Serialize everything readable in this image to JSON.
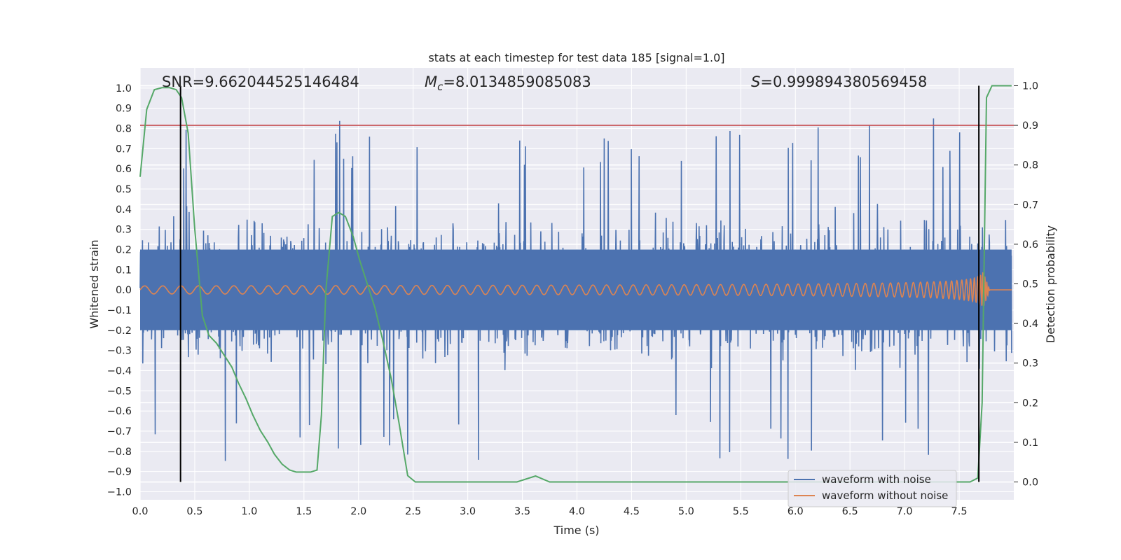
{
  "chart_data": {
    "type": "line",
    "title": "stats at each timestep for test data 185 [signal=1.0]",
    "xlabel": "Time (s)",
    "ylabel": "Whitened strain",
    "y2label": "Detection probability",
    "xlim": [
      0.0,
      8.0
    ],
    "ylim": [
      -1.04,
      1.1
    ],
    "y2lim": [
      -0.045,
      1.045
    ],
    "grid": true,
    "legend_position": "lower-right",
    "x_ticks": [
      "0.0",
      "0.5",
      "1.0",
      "1.5",
      "2.0",
      "2.5",
      "3.0",
      "3.5",
      "4.0",
      "4.5",
      "5.0",
      "5.5",
      "6.0",
      "6.5",
      "7.0",
      "7.5"
    ],
    "x_tick_values": [
      0.0,
      0.5,
      1.0,
      1.5,
      2.0,
      2.5,
      3.0,
      3.5,
      4.0,
      4.5,
      5.0,
      5.5,
      6.0,
      6.5,
      7.0,
      7.5
    ],
    "y_ticks": [
      "1.0",
      "0.9",
      "0.8",
      "0.7",
      "0.6",
      "0.5",
      "0.4",
      "0.3",
      "0.2",
      "0.1",
      "0.0",
      "−0.1",
      "−0.2",
      "−0.3",
      "−0.4",
      "−0.5",
      "−0.6",
      "−0.7",
      "−0.8",
      "−0.9",
      "−1.0"
    ],
    "y_tick_values": [
      1.0,
      0.9,
      0.8,
      0.7,
      0.6,
      0.5,
      0.4,
      0.3,
      0.2,
      0.1,
      0.0,
      -0.1,
      -0.2,
      -0.3,
      -0.4,
      -0.5,
      -0.6,
      -0.7,
      -0.8,
      -0.9,
      -1.0
    ],
    "y2_ticks": [
      "1.0",
      "0.9",
      "0.8",
      "0.7",
      "0.6",
      "0.5",
      "0.4",
      "0.3",
      "0.2",
      "0.1",
      "0.0"
    ],
    "y2_tick_values": [
      1.0,
      0.9,
      0.8,
      0.7,
      0.6,
      0.5,
      0.4,
      0.3,
      0.2,
      0.1,
      0.0
    ],
    "annotations": {
      "snr": "SNR=9.662044525146484",
      "mc_symbol": "M",
      "mc_sub": "c",
      "mc_value": "=8.0134859085083",
      "s_symbol": "S",
      "s_value": "=0.999894380569458"
    },
    "series": [
      {
        "name": "waveform with noise",
        "color": "#4c72b0",
        "description_values": {
          "typical_range": [
            -0.5,
            0.5
          ],
          "max": 1.0,
          "min": -0.9
        }
      },
      {
        "name": "waveform without noise",
        "color": "#dd8452",
        "chirp": {
          "start_amplitude": 0.02,
          "peak_time": 7.72,
          "peak_max": 0.25,
          "peak_min": -0.33,
          "end_time": 7.78
        }
      },
      {
        "name": "detection probability",
        "color": "#55a868",
        "axis": "right",
        "x": [
          0.0,
          0.06,
          0.13,
          0.2,
          0.27,
          0.33,
          0.38,
          0.44,
          0.5,
          0.57,
          0.63,
          0.7,
          0.77,
          0.84,
          0.9,
          0.97,
          1.03,
          1.1,
          1.17,
          1.23,
          1.3,
          1.37,
          1.43,
          1.5,
          1.56,
          1.62,
          1.66,
          1.7,
          1.76,
          1.82,
          1.88,
          1.95,
          2.01,
          2.08,
          2.15,
          2.22,
          2.3,
          2.37,
          2.45,
          2.52,
          3.0,
          3.45,
          3.62,
          3.75,
          3.85,
          4.5,
          5.5,
          6.5,
          7.6,
          7.67,
          7.71,
          7.75,
          7.8,
          7.85,
          7.98
        ],
        "y": [
          0.77,
          0.94,
          0.99,
          0.995,
          0.995,
          0.99,
          0.97,
          0.88,
          0.64,
          0.42,
          0.37,
          0.35,
          0.32,
          0.29,
          0.25,
          0.21,
          0.17,
          0.13,
          0.1,
          0.07,
          0.045,
          0.03,
          0.025,
          0.025,
          0.025,
          0.03,
          0.17,
          0.48,
          0.67,
          0.68,
          0.67,
          0.62,
          0.56,
          0.5,
          0.44,
          0.36,
          0.26,
          0.15,
          0.016,
          0.0,
          0.0,
          0.0,
          0.015,
          0.0,
          0.0,
          0.0,
          0.0,
          0.0,
          0.0,
          0.01,
          0.2,
          0.97,
          1.0,
          1.0,
          1.0
        ]
      },
      {
        "name": "threshold",
        "color": "#c44e52",
        "axis": "right",
        "y": 0.9
      }
    ],
    "vertical_markers": [
      0.37,
      7.68
    ]
  },
  "legend": {
    "noise_label": "waveform with noise",
    "clean_label": "waveform without noise"
  }
}
